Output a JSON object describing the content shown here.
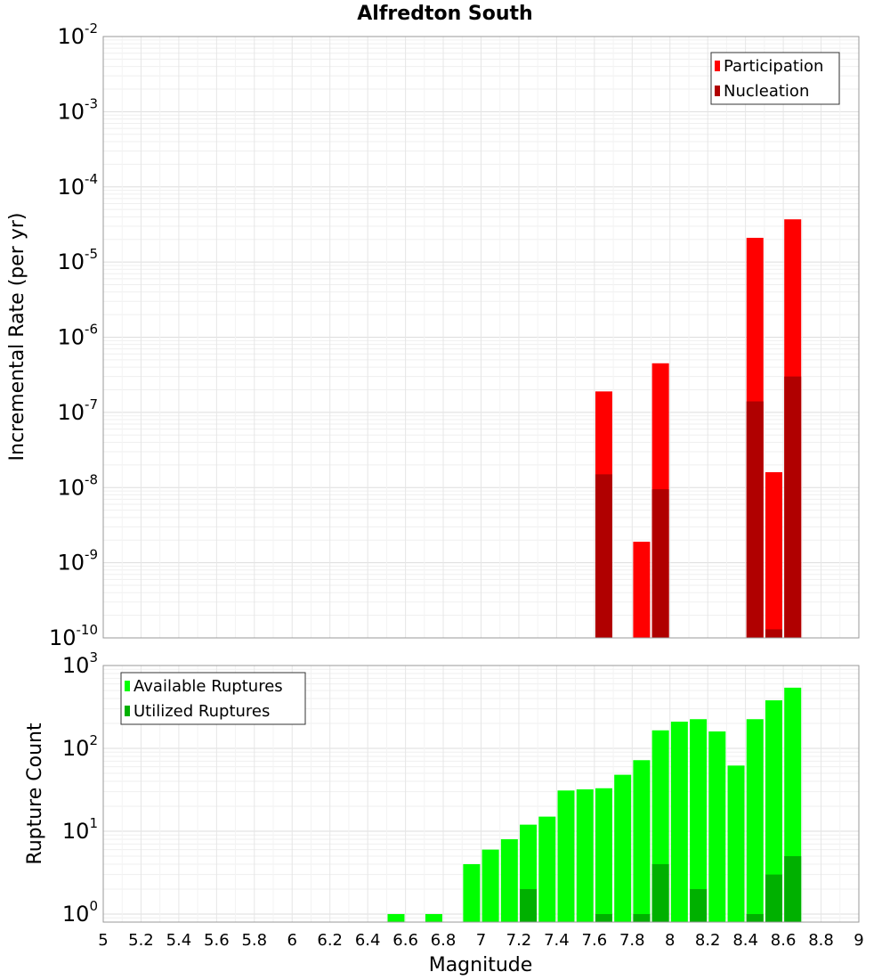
{
  "chart_data": [
    {
      "type": "bar",
      "title": "Alfredton South",
      "xlabel": "",
      "ylabel": "Incremental Rate (per yr)",
      "y_scale": "log",
      "ylim": [
        1e-10,
        0.01
      ],
      "xlim": [
        5,
        9
      ],
      "grid": true,
      "legend_position": "top-right",
      "y_ticks": [
        {
          "base": "10",
          "exp": "-10",
          "value": 1e-10
        },
        {
          "base": "10",
          "exp": "-9",
          "value": 1e-09
        },
        {
          "base": "10",
          "exp": "-8",
          "value": 1e-08
        },
        {
          "base": "10",
          "exp": "-7",
          "value": 1e-07
        },
        {
          "base": "10",
          "exp": "-6",
          "value": 1e-06
        },
        {
          "base": "10",
          "exp": "-5",
          "value": 1e-05
        },
        {
          "base": "10",
          "exp": "-4",
          "value": 0.0001
        },
        {
          "base": "10",
          "exp": "-3",
          "value": 0.001
        },
        {
          "base": "10",
          "exp": "-2",
          "value": 0.01
        }
      ],
      "series": [
        {
          "name": "Participation",
          "color": "#ff0000",
          "x": [
            7.65,
            7.85,
            7.95,
            8.45,
            8.55,
            8.65
          ],
          "values": [
            1.9e-07,
            1.9e-09,
            4.5e-07,
            2.1e-05,
            1.6e-08,
            3.7e-05
          ]
        },
        {
          "name": "Nucleation",
          "color": "#b00000",
          "x": [
            7.65,
            7.95,
            8.45,
            8.55,
            8.65
          ],
          "values": [
            1.5e-08,
            9.5e-09,
            1.4e-07,
            1.3e-10,
            3e-07
          ]
        }
      ]
    },
    {
      "type": "bar",
      "title": "",
      "xlabel": "Magnitude",
      "ylabel": "Rupture Count",
      "y_scale": "log",
      "ylim": [
        0.8,
        1000
      ],
      "xlim": [
        5,
        9
      ],
      "grid": true,
      "legend_position": "top-left",
      "x_ticks": [
        "5",
        "5.2",
        "5.4",
        "5.6",
        "5.8",
        "6",
        "6.2",
        "6.4",
        "6.6",
        "6.8",
        "7",
        "7.2",
        "7.4",
        "7.6",
        "7.8",
        "8",
        "8.2",
        "8.4",
        "8.6",
        "8.8",
        "9"
      ],
      "y_ticks": [
        {
          "base": "10",
          "exp": "0",
          "value": 1
        },
        {
          "base": "10",
          "exp": "1",
          "value": 10
        },
        {
          "base": "10",
          "exp": "2",
          "value": 100
        },
        {
          "base": "10",
          "exp": "3",
          "value": 1000
        }
      ],
      "series": [
        {
          "name": "Available Ruptures",
          "color": "#00ff00",
          "x": [
            6.55,
            6.75,
            6.95,
            7.05,
            7.15,
            7.25,
            7.35,
            7.45,
            7.55,
            7.65,
            7.75,
            7.85,
            7.95,
            8.05,
            8.15,
            8.25,
            8.35,
            8.45,
            8.55,
            8.65
          ],
          "values": [
            1,
            1,
            4,
            6,
            8,
            12,
            15,
            31,
            32,
            33,
            48,
            72,
            165,
            210,
            225,
            160,
            62,
            225,
            380,
            540
          ]
        },
        {
          "name": "Utilized Ruptures",
          "color": "#00b000",
          "x": [
            7.25,
            7.65,
            7.85,
            7.95,
            8.15,
            8.45,
            8.55,
            8.65
          ],
          "values": [
            2,
            1,
            1,
            4,
            2,
            1,
            3,
            5
          ]
        }
      ]
    }
  ]
}
